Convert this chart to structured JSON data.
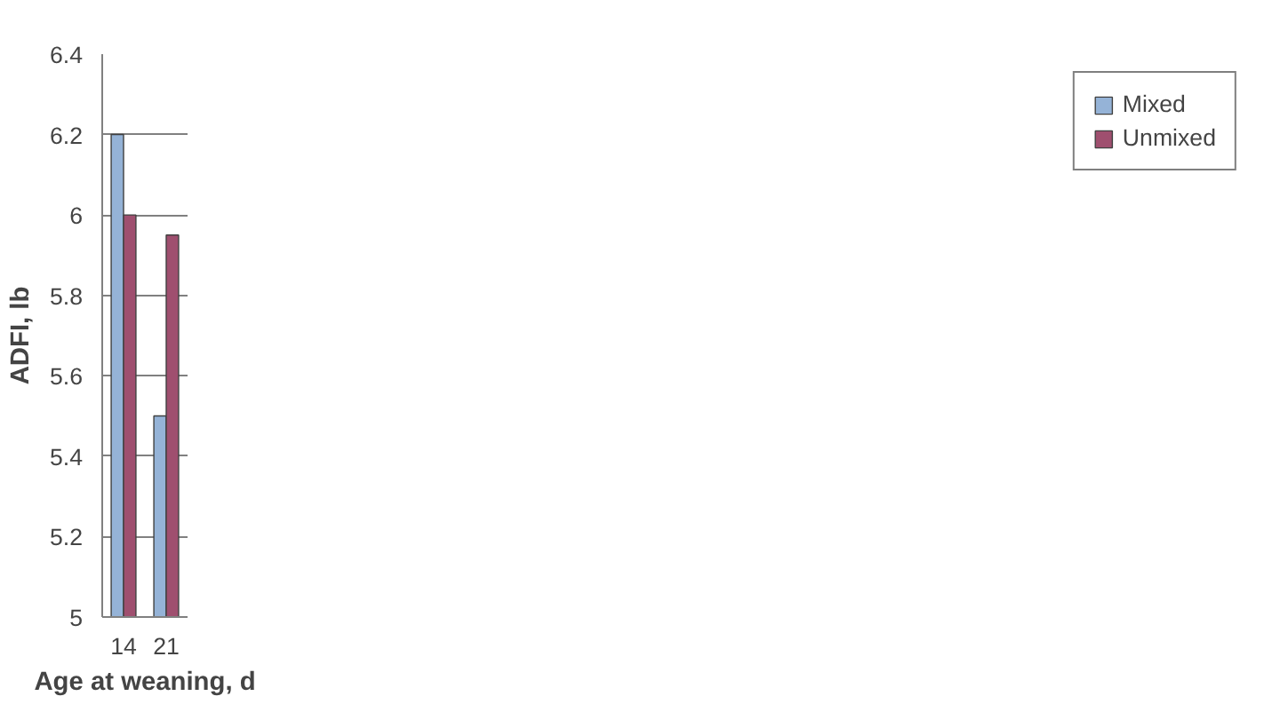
{
  "chart_data": {
    "type": "bar",
    "xlabel": "Age at weaning, d",
    "ylabel": "ADFI, lb",
    "categories": [
      "14",
      "21"
    ],
    "series": [
      {
        "name": "Mixed",
        "color": "#95b3d7",
        "values": [
          6.2,
          5.5
        ]
      },
      {
        "name": "Unmixed",
        "color": "#9f4f6f",
        "values": [
          6.0,
          5.95
        ]
      }
    ],
    "ylim": [
      5,
      6.4
    ],
    "yticks": [
      5,
      5.2,
      5.4,
      5.6,
      5.8,
      6,
      6.2,
      6.4
    ],
    "grid": "y",
    "legend": "right"
  }
}
